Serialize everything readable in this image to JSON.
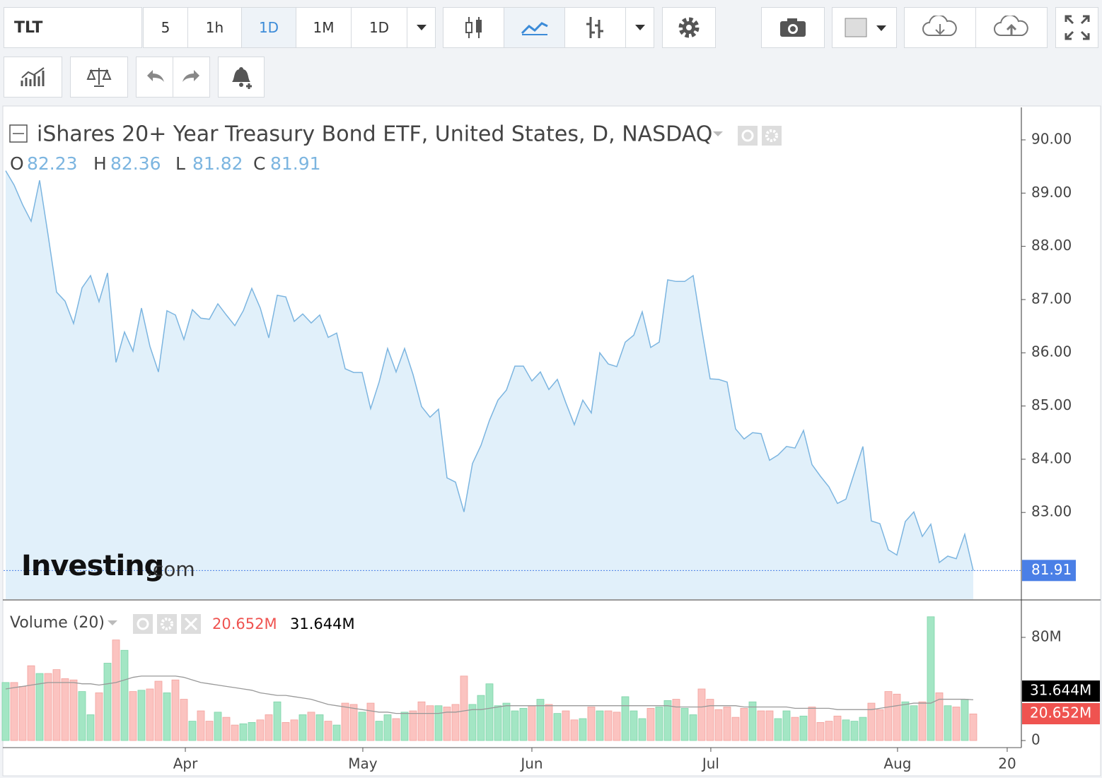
{
  "toolbar": {
    "symbol": "TLT",
    "intervals": [
      "5",
      "1h",
      "1D",
      "1M",
      "1D"
    ],
    "active_interval": 2
  },
  "watermark": {
    "brand": "Investing",
    "suffix": ".com"
  },
  "chart_data": [
    {
      "type": "area",
      "title": "iShares 20+ Year Treasury Bond ETF, United States, D, NASDAQ",
      "legend": [
        {
          "label": "O",
          "value": 82.23
        },
        {
          "label": "H",
          "value": 82.36
        },
        {
          "label": "L",
          "value": 81.82
        },
        {
          "label": "C",
          "value": 81.91
        }
      ],
      "color": "#7cb5e0",
      "fill": "#e1f0fa",
      "legend_color": "#7cb5e0",
      "last_color": "#4a7fe6",
      "values": [
        89.42,
        89.15,
        88.78,
        88.47,
        89.24,
        88.21,
        87.14,
        86.97,
        86.55,
        87.22,
        87.45,
        86.96,
        87.5,
        85.82,
        86.39,
        86.03,
        86.84,
        86.12,
        85.64,
        86.79,
        86.71,
        86.25,
        86.81,
        86.65,
        86.63,
        86.92,
        86.71,
        86.51,
        86.79,
        87.21,
        86.84,
        86.28,
        87.08,
        87.05,
        86.59,
        86.73,
        86.56,
        86.71,
        86.29,
        86.37,
        85.7,
        85.63,
        85.63,
        84.95,
        85.45,
        86.08,
        85.64,
        86.08,
        85.59,
        84.99,
        84.79,
        84.94,
        83.65,
        83.57,
        83.01,
        83.92,
        84.26,
        84.73,
        85.11,
        85.3,
        85.75,
        85.75,
        85.47,
        85.64,
        85.31,
        85.5,
        85.06,
        84.65,
        85.11,
        84.87,
        86.0,
        85.79,
        85.74,
        86.2,
        86.33,
        86.77,
        86.1,
        86.2,
        87.37,
        87.34,
        87.34,
        87.45,
        86.45,
        85.51,
        85.5,
        85.45,
        84.57,
        84.38,
        84.5,
        84.48,
        83.98,
        84.08,
        84.24,
        84.21,
        84.54,
        83.9,
        83.68,
        83.48,
        83.17,
        83.25,
        83.75,
        84.24,
        82.84,
        82.79,
        82.3,
        82.2,
        82.83,
        83.01,
        82.55,
        82.78,
        82.06,
        82.18,
        82.13,
        82.59,
        81.91
      ],
      "xlim": [
        -0.25,
        119.67
      ],
      "xticks": [
        {
          "value": 21.17,
          "label": "Apr"
        },
        {
          "value": 42.08,
          "label": "May"
        },
        {
          "value": 62,
          "label": "Jun"
        },
        {
          "value": 83.08,
          "label": "Jul"
        },
        {
          "value": 105.08,
          "label": "Aug"
        },
        {
          "value": 118,
          "label": "20"
        }
      ],
      "ylim": [
        81.37,
        90.61
      ],
      "yticks": [
        {
          "value": 83,
          "label": "83.00"
        },
        {
          "value": 84,
          "label": "84.00"
        },
        {
          "value": 85,
          "label": "85.00"
        },
        {
          "value": 86,
          "label": "86.00"
        },
        {
          "value": 87,
          "label": "87.00"
        },
        {
          "value": 88,
          "label": "88.00"
        },
        {
          "value": 89,
          "label": "89.00"
        },
        {
          "value": 90,
          "label": "90.00"
        }
      ]
    },
    {
      "type": "bar",
      "title": "Volume (20)",
      "up_color": "#a3e6c4",
      "down_color": "#fbc3c0",
      "ma_color": "#999999",
      "values": [
        45,
        45,
        42,
        58,
        52,
        52,
        55,
        48,
        47,
        38,
        20,
        37,
        60,
        78,
        70,
        38,
        39,
        40,
        46,
        37,
        47,
        32,
        15,
        23,
        15,
        22,
        18,
        12,
        13,
        14,
        16,
        20,
        30,
        14,
        16,
        20,
        22,
        20,
        15,
        12,
        29,
        28,
        22,
        29,
        15,
        20,
        17,
        22,
        23,
        30,
        27,
        27,
        26,
        28,
        50,
        28,
        35,
        44,
        27,
        29,
        23,
        25,
        27,
        32,
        28,
        21,
        23,
        16,
        17,
        26,
        23,
        23,
        22,
        34,
        23,
        17,
        25,
        26,
        31,
        32,
        25,
        20,
        40,
        32,
        24,
        26,
        18,
        25,
        30,
        23,
        23,
        17,
        23,
        18,
        19,
        26,
        14,
        15,
        19,
        16,
        15,
        18,
        29,
        24,
        38,
        36,
        30,
        27,
        30,
        96,
        37,
        27,
        26,
        32,
        20.652
      ],
      "ma": [
        40,
        41,
        42,
        43,
        44,
        45,
        45,
        45,
        45,
        44,
        44,
        43,
        44,
        45,
        47,
        49,
        50,
        50,
        50,
        50,
        50,
        49,
        47,
        45,
        44,
        43,
        42,
        41,
        40,
        39,
        37,
        36,
        35,
        35,
        34,
        33,
        32,
        30,
        28,
        27,
        26,
        25,
        24,
        23,
        22,
        22,
        21,
        21,
        21,
        21,
        21,
        21,
        22,
        22,
        23,
        24,
        24,
        25,
        26,
        27,
        27,
        27,
        27,
        27,
        27,
        27,
        27,
        27,
        27,
        27,
        27,
        27,
        27,
        27,
        27,
        27,
        27,
        27,
        27,
        26,
        26,
        26,
        26,
        27,
        27,
        27,
        27,
        26,
        26,
        26,
        26,
        26,
        26,
        25,
        25,
        25,
        25,
        25,
        24,
        24,
        24,
        24,
        24,
        25,
        26,
        27,
        28,
        29,
        29,
        29,
        32,
        32,
        32,
        32,
        31.644
      ],
      "legend_values": [
        {
          "value": 20.652,
          "label": "20.652M",
          "color": "#ef5350"
        },
        {
          "value": 31.644,
          "label": "31.644M",
          "color": "#000000"
        }
      ],
      "xlim": [
        -0.25,
        119.67
      ],
      "ylim": [
        -5.5,
        108.5
      ],
      "yticks": [
        0,
        {
          "value": 80,
          "label": "80M"
        }
      ]
    }
  ]
}
